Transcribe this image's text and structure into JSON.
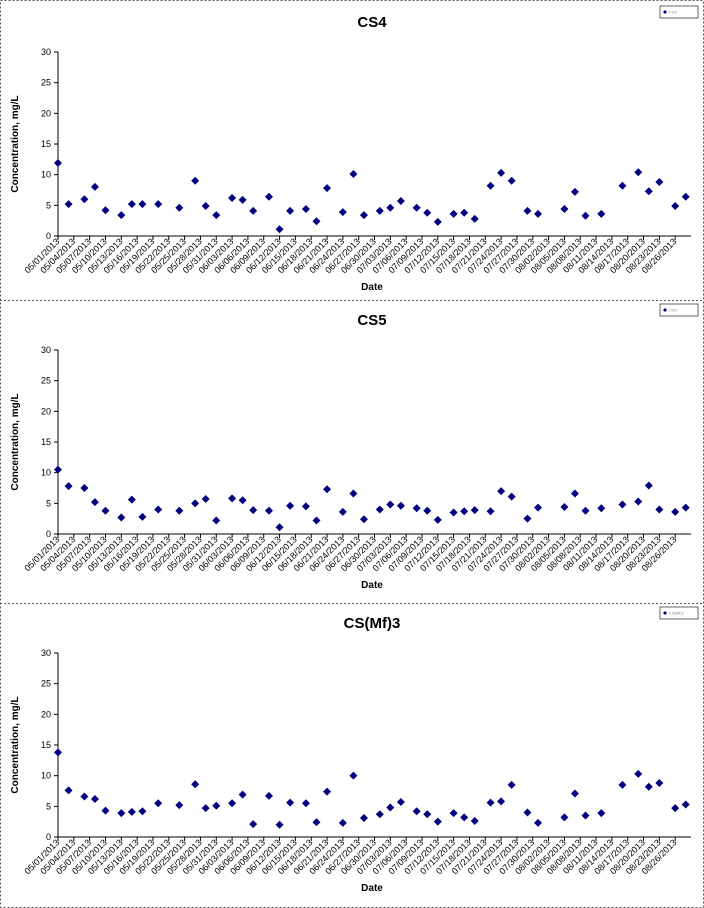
{
  "chart_data": [
    {
      "type": "scatter",
      "title": "CS4",
      "x_label": "Date",
      "y_label": "Concentration, mg/L",
      "x": [
        "05/01/2013",
        "05/03/2013",
        "05/06/2013",
        "05/08/2013",
        "05/10/2013",
        "05/13/2013",
        "05/15/2013",
        "05/17/2013",
        "05/20/2013",
        "05/24/2013",
        "05/27/2013",
        "05/29/2013",
        "05/31/2013",
        "06/03/2013",
        "06/05/2013",
        "06/07/2013",
        "06/10/2013",
        "06/12/2013",
        "06/14/2013",
        "06/17/2013",
        "06/19/2013",
        "06/21/2013",
        "06/24/2013",
        "06/26/2013",
        "06/28/2013",
        "07/01/2013",
        "07/03/2013",
        "07/05/2013",
        "07/08/2013",
        "07/10/2013",
        "07/12/2013",
        "07/15/2013",
        "07/17/2013",
        "07/19/2013",
        "07/22/2013",
        "07/24/2013",
        "07/26/2013",
        "07/29/2013",
        "07/31/2013",
        "08/05/2013",
        "08/07/2013",
        "08/09/2013",
        "08/12/2013",
        "08/16/2013",
        "08/19/2013",
        "08/21/2013",
        "08/23/2013",
        "08/26/2013",
        "08/28/2013"
      ],
      "series": [
        {
          "name": "CS4",
          "color": "#000080",
          "values": [
            11.9,
            5.2,
            6.0,
            8.0,
            4.2,
            3.4,
            5.2,
            5.2,
            5.2,
            4.6,
            9.0,
            4.9,
            3.4,
            6.2,
            5.9,
            4.1,
            6.4,
            1.1,
            4.1,
            4.4,
            2.4,
            7.8,
            3.9,
            10.1,
            3.4,
            4.1,
            4.6,
            5.7,
            4.6,
            3.8,
            2.3,
            3.6,
            3.8,
            2.8,
            8.2,
            10.3,
            9.0,
            4.1,
            3.6,
            4.4,
            7.2,
            3.3,
            3.6,
            8.2,
            10.4,
            7.3,
            8.8,
            4.9,
            6.4
          ]
        }
      ],
      "xlim": [
        "05/01/2013",
        "08/29/2013"
      ],
      "xticks": [
        "05/01/2013",
        "05/04/2013",
        "05/07/2013",
        "05/10/2013",
        "05/13/2013",
        "05/16/2013",
        "05/19/2013",
        "05/22/2013",
        "05/25/2013",
        "05/28/2013",
        "05/31/2013",
        "06/03/2013",
        "06/06/2013",
        "06/09/2013",
        "06/12/2013",
        "06/15/2013",
        "06/18/2013",
        "06/21/2013",
        "06/24/2013",
        "06/27/2013",
        "06/30/2013",
        "07/03/2013",
        "07/06/2013",
        "07/09/2013",
        "07/12/2013",
        "07/15/2013",
        "07/18/2013",
        "07/21/2013",
        "07/24/2013",
        "07/27/2013",
        "07/30/2013",
        "08/02/2013",
        "08/05/2013",
        "08/08/2013",
        "08/11/2013",
        "08/14/2013",
        "08/17/2013",
        "08/20/2013",
        "08/23/2013",
        "08/26/2013"
      ],
      "ylim": [
        0,
        30
      ],
      "yticks": [
        0,
        5,
        10,
        15,
        20,
        25,
        30
      ],
      "legend": "upper right"
    },
    {
      "type": "scatter",
      "title": "CS5",
      "x_label": "Date",
      "y_label": "Concentration, mg/L",
      "x": [
        "05/01/2013",
        "05/03/2013",
        "05/06/2013",
        "05/08/2013",
        "05/10/2013",
        "05/13/2013",
        "05/15/2013",
        "05/17/2013",
        "05/20/2013",
        "05/24/2013",
        "05/27/2013",
        "05/29/2013",
        "05/31/2013",
        "06/03/2013",
        "06/05/2013",
        "06/07/2013",
        "06/10/2013",
        "06/12/2013",
        "06/14/2013",
        "06/17/2013",
        "06/19/2013",
        "06/21/2013",
        "06/24/2013",
        "06/26/2013",
        "06/28/2013",
        "07/01/2013",
        "07/03/2013",
        "07/05/2013",
        "07/08/2013",
        "07/10/2013",
        "07/12/2013",
        "07/15/2013",
        "07/17/2013",
        "07/19/2013",
        "07/22/2013",
        "07/24/2013",
        "07/26/2013",
        "07/29/2013",
        "07/31/2013",
        "08/05/2013",
        "08/07/2013",
        "08/09/2013",
        "08/12/2013",
        "08/16/2013",
        "08/19/2013",
        "08/21/2013",
        "08/23/2013",
        "08/26/2013",
        "08/28/2013"
      ],
      "series": [
        {
          "name": "CS5",
          "color": "#000080",
          "values": [
            10.5,
            7.8,
            7.5,
            5.2,
            3.8,
            2.7,
            5.6,
            2.8,
            4.0,
            3.8,
            5.0,
            5.7,
            2.2,
            5.8,
            5.5,
            3.9,
            3.8,
            1.1,
            4.6,
            4.5,
            2.2,
            7.3,
            3.6,
            6.6,
            2.4,
            4.0,
            4.8,
            4.6,
            4.2,
            3.8,
            2.3,
            3.5,
            3.7,
            3.9,
            3.7,
            7.0,
            6.1,
            2.5,
            4.3,
            4.4,
            6.6,
            3.8,
            4.2,
            4.8,
            5.3,
            7.9,
            4.0,
            3.6,
            4.3
          ]
        }
      ],
      "xlim": [
        "05/01/2013",
        "08/29/2013"
      ],
      "xticks": [
        "05/01/2013",
        "05/04/2013",
        "05/07/2013",
        "05/10/2013",
        "05/13/2013",
        "05/16/2013",
        "05/19/2013",
        "05/22/2013",
        "05/25/2013",
        "05/28/2013",
        "05/31/2013",
        "06/03/2013",
        "06/06/2013",
        "06/09/2013",
        "06/12/2013",
        "06/15/2013",
        "06/18/2013",
        "06/21/2013",
        "06/24/2013",
        "06/27/2013",
        "06/30/2013",
        "07/03/2013",
        "07/06/2013",
        "07/09/2013",
        "07/12/2013",
        "07/15/2013",
        "07/18/2013",
        "07/21/2013",
        "07/24/2013",
        "07/27/2013",
        "07/30/2013",
        "08/02/2013",
        "08/05/2013",
        "08/08/2013",
        "08/11/2013",
        "08/14/2013",
        "08/17/2013",
        "08/20/2013",
        "08/23/2013",
        "08/26/2013"
      ],
      "ylim": [
        0,
        30
      ],
      "yticks": [
        0,
        5,
        10,
        15,
        20,
        25,
        30
      ],
      "legend": "upper right"
    },
    {
      "type": "scatter",
      "title": "CS(Mf)3",
      "x_label": "Date",
      "y_label": "Concentration, mg/L",
      "x": [
        "05/01/2013",
        "05/03/2013",
        "05/06/2013",
        "05/08/2013",
        "05/10/2013",
        "05/13/2013",
        "05/15/2013",
        "05/17/2013",
        "05/20/2013",
        "05/24/2013",
        "05/27/2013",
        "05/29/2013",
        "05/31/2013",
        "06/03/2013",
        "06/05/2013",
        "06/07/2013",
        "06/10/2013",
        "06/12/2013",
        "06/14/2013",
        "06/17/2013",
        "06/19/2013",
        "06/21/2013",
        "06/24/2013",
        "06/26/2013",
        "06/28/2013",
        "07/01/2013",
        "07/03/2013",
        "07/05/2013",
        "07/08/2013",
        "07/10/2013",
        "07/12/2013",
        "07/15/2013",
        "07/17/2013",
        "07/19/2013",
        "07/22/2013",
        "07/24/2013",
        "07/26/2013",
        "07/29/2013",
        "07/31/2013",
        "08/05/2013",
        "08/07/2013",
        "08/09/2013",
        "08/12/2013",
        "08/16/2013",
        "08/19/2013",
        "08/21/2013",
        "08/23/2013",
        "08/26/2013",
        "08/28/2013"
      ],
      "series": [
        {
          "name": "CS(Mf)3",
          "color": "#000080",
          "values": [
            13.8,
            7.6,
            6.6,
            6.2,
            4.3,
            3.9,
            4.1,
            4.2,
            5.5,
            5.2,
            8.6,
            4.7,
            5.1,
            5.5,
            6.9,
            2.1,
            6.7,
            2.0,
            5.6,
            5.5,
            2.4,
            7.4,
            2.3,
            10.0,
            3.1,
            3.7,
            4.8,
            5.7,
            4.2,
            3.7,
            2.5,
            3.9,
            3.2,
            2.6,
            5.6,
            5.8,
            8.5,
            4.0,
            2.3,
            3.2,
            7.1,
            3.5,
            3.9,
            8.5,
            10.3,
            8.2,
            8.8,
            4.7,
            5.3
          ]
        }
      ],
      "xlim": [
        "05/01/2013",
        "08/29/2013"
      ],
      "xticks": [
        "05/01/2013",
        "05/04/2013",
        "05/07/2013",
        "05/10/2013",
        "05/13/2013",
        "05/16/2013",
        "05/19/2013",
        "05/22/2013",
        "05/25/2013",
        "05/28/2013",
        "05/31/2013",
        "06/03/2013",
        "06/06/2013",
        "06/09/2013",
        "06/12/2013",
        "06/15/2013",
        "06/18/2013",
        "06/21/2013",
        "06/24/2013",
        "06/27/2013",
        "06/30/2013",
        "07/03/2013",
        "07/06/2013",
        "07/09/2013",
        "07/12/2013",
        "07/15/2013",
        "07/18/2013",
        "07/21/2013",
        "07/24/2013",
        "07/27/2013",
        "07/30/2013",
        "08/02/2013",
        "08/05/2013",
        "08/08/2013",
        "08/11/2013",
        "08/14/2013",
        "08/17/2013",
        "08/20/2013",
        "08/23/2013",
        "08/26/2013"
      ],
      "ylim": [
        0,
        30
      ],
      "yticks": [
        0,
        5,
        10,
        15,
        20,
        25,
        30
      ],
      "legend": "upper right"
    }
  ]
}
